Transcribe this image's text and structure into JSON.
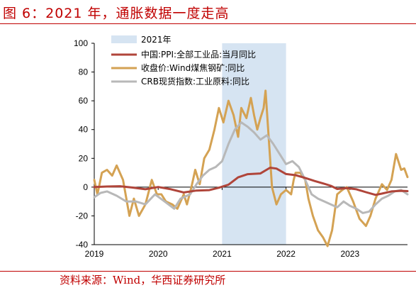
{
  "header": {
    "title": "图 6：2021 年，通胀数据一度走高"
  },
  "footer": {
    "source": "资料来源：Wind，华西证券研究所"
  },
  "chart_data": {
    "type": "line",
    "xlim": [
      2019,
      2023.9
    ],
    "ylim": [
      -40,
      100
    ],
    "yticks": [
      -40,
      -20,
      0,
      20,
      40,
      60,
      80,
      100
    ],
    "xticks": [
      "2019",
      "2020",
      "2021",
      "2022",
      "2023"
    ],
    "shade": {
      "label": "2021年",
      "from": 2021.0,
      "to": 2022.0,
      "color": "#d6e4f2"
    },
    "legend_position": "top-left",
    "series": [
      {
        "name": "中国:PPI:全部工业品:当月同比",
        "color": "#b0453a",
        "points": [
          [
            2019.0,
            0.1
          ],
          [
            2019.2,
            0.4
          ],
          [
            2019.4,
            0.6
          ],
          [
            2019.6,
            -0.3
          ],
          [
            2019.8,
            -1.5
          ],
          [
            2020.0,
            0.1
          ],
          [
            2020.2,
            -1.5
          ],
          [
            2020.4,
            -3.7
          ],
          [
            2020.6,
            -2.4
          ],
          [
            2020.8,
            -2.1
          ],
          [
            2020.95,
            -0.4
          ],
          [
            2021.1,
            1.7
          ],
          [
            2021.25,
            6.8
          ],
          [
            2021.4,
            9.0
          ],
          [
            2021.6,
            9.5
          ],
          [
            2021.75,
            13.5
          ],
          [
            2021.85,
            12.9
          ],
          [
            2022.0,
            9.1
          ],
          [
            2022.15,
            8.3
          ],
          [
            2022.3,
            6.4
          ],
          [
            2022.45,
            4.2
          ],
          [
            2022.6,
            2.3
          ],
          [
            2022.7,
            0.9
          ],
          [
            2022.8,
            -1.3
          ],
          [
            2022.95,
            -0.7
          ],
          [
            2023.1,
            -1.5
          ],
          [
            2023.25,
            -3.5
          ],
          [
            2023.4,
            -5.4
          ],
          [
            2023.5,
            -4.5
          ],
          [
            2023.65,
            -3.0
          ],
          [
            2023.8,
            -2.6
          ],
          [
            2023.9,
            -2.8
          ]
        ]
      },
      {
        "name": "收盘价:Wind煤焦钢矿:同比",
        "color": "#d4a253",
        "points": [
          [
            2019.0,
            5
          ],
          [
            2019.05,
            -5
          ],
          [
            2019.12,
            10
          ],
          [
            2019.2,
            12
          ],
          [
            2019.28,
            8
          ],
          [
            2019.35,
            15
          ],
          [
            2019.45,
            5
          ],
          [
            2019.55,
            -20
          ],
          [
            2019.62,
            -8
          ],
          [
            2019.7,
            -20
          ],
          [
            2019.8,
            -12
          ],
          [
            2019.9,
            5
          ],
          [
            2019.98,
            -5
          ],
          [
            2020.05,
            -5
          ],
          [
            2020.12,
            -10
          ],
          [
            2020.22,
            -12
          ],
          [
            2020.3,
            -15
          ],
          [
            2020.4,
            -5
          ],
          [
            2020.45,
            -12
          ],
          [
            2020.52,
            0
          ],
          [
            2020.58,
            12
          ],
          [
            2020.65,
            2
          ],
          [
            2020.72,
            20
          ],
          [
            2020.8,
            26
          ],
          [
            2020.88,
            40
          ],
          [
            2020.95,
            55
          ],
          [
            2021.02,
            45
          ],
          [
            2021.1,
            60
          ],
          [
            2021.18,
            50
          ],
          [
            2021.25,
            35
          ],
          [
            2021.3,
            55
          ],
          [
            2021.38,
            48
          ],
          [
            2021.45,
            62
          ],
          [
            2021.5,
            50
          ],
          [
            2021.55,
            40
          ],
          [
            2021.6,
            48
          ],
          [
            2021.65,
            55
          ],
          [
            2021.68,
            67
          ],
          [
            2021.72,
            40
          ],
          [
            2021.78,
            0
          ],
          [
            2021.85,
            -12
          ],
          [
            2021.92,
            -5
          ],
          [
            2022.0,
            -2
          ],
          [
            2022.08,
            -5
          ],
          [
            2022.12,
            5
          ],
          [
            2022.15,
            10
          ],
          [
            2022.22,
            10
          ],
          [
            2022.3,
            5
          ],
          [
            2022.35,
            -8
          ],
          [
            2022.42,
            -20
          ],
          [
            2022.5,
            -30
          ],
          [
            2022.58,
            -35
          ],
          [
            2022.65,
            -41
          ],
          [
            2022.72,
            -30
          ],
          [
            2022.8,
            -5
          ],
          [
            2022.88,
            -2
          ],
          [
            2022.95,
            0
          ],
          [
            2023.05,
            -10
          ],
          [
            2023.15,
            -22
          ],
          [
            2023.25,
            -27
          ],
          [
            2023.32,
            -20
          ],
          [
            2023.4,
            -8
          ],
          [
            2023.5,
            2
          ],
          [
            2023.58,
            -2
          ],
          [
            2023.65,
            5
          ],
          [
            2023.72,
            23
          ],
          [
            2023.8,
            12
          ],
          [
            2023.85,
            13
          ],
          [
            2023.9,
            7
          ]
        ]
      },
      {
        "name": "CRB现货指数:工业原料:同比",
        "color": "#b8b8b8",
        "points": [
          [
            2019.0,
            -7
          ],
          [
            2019.1,
            -4
          ],
          [
            2019.2,
            -3
          ],
          [
            2019.35,
            -6
          ],
          [
            2019.5,
            -10
          ],
          [
            2019.65,
            -10
          ],
          [
            2019.8,
            -12
          ],
          [
            2019.95,
            -5
          ],
          [
            2020.1,
            -10
          ],
          [
            2020.25,
            -15
          ],
          [
            2020.35,
            -8
          ],
          [
            2020.5,
            -5
          ],
          [
            2020.6,
            2
          ],
          [
            2020.7,
            8
          ],
          [
            2020.8,
            12
          ],
          [
            2020.9,
            14
          ],
          [
            2021.0,
            18
          ],
          [
            2021.1,
            30
          ],
          [
            2021.2,
            40
          ],
          [
            2021.3,
            45
          ],
          [
            2021.4,
            42
          ],
          [
            2021.5,
            38
          ],
          [
            2021.6,
            33
          ],
          [
            2021.7,
            36
          ],
          [
            2021.8,
            30
          ],
          [
            2021.9,
            23
          ],
          [
            2022.0,
            16
          ],
          [
            2022.1,
            18
          ],
          [
            2022.2,
            14
          ],
          [
            2022.3,
            5
          ],
          [
            2022.4,
            -5
          ],
          [
            2022.5,
            -8
          ],
          [
            2022.6,
            -10
          ],
          [
            2022.7,
            -12
          ],
          [
            2022.8,
            -14
          ],
          [
            2022.9,
            -10
          ],
          [
            2023.0,
            -13
          ],
          [
            2023.1,
            -15
          ],
          [
            2023.2,
            -18
          ],
          [
            2023.3,
            -17
          ],
          [
            2023.4,
            -12
          ],
          [
            2023.5,
            -8
          ],
          [
            2023.6,
            -6
          ],
          [
            2023.7,
            -3
          ],
          [
            2023.8,
            -2
          ],
          [
            2023.9,
            -5
          ]
        ]
      }
    ]
  }
}
